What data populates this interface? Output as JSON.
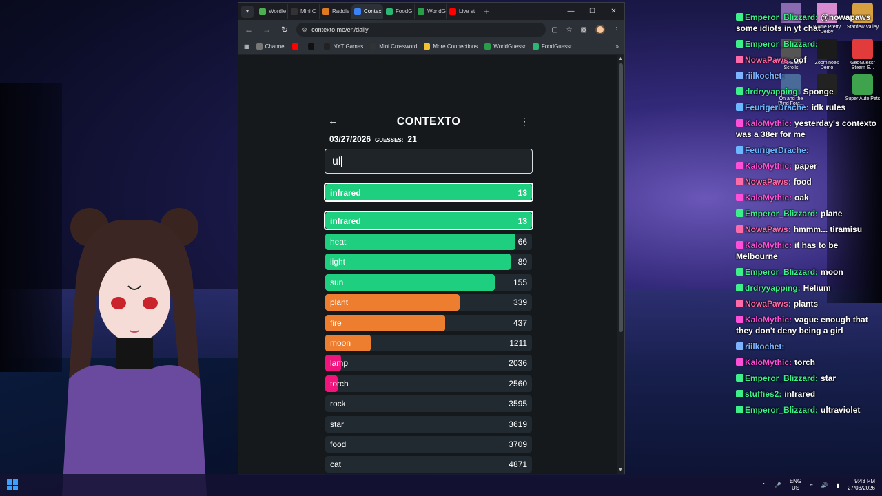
{
  "browser": {
    "tabs": [
      {
        "label": "Wordle",
        "color": "#4caf50"
      },
      {
        "label": "Mini C",
        "color": "#333333"
      },
      {
        "label": "Raddle",
        "color": "#e07a20"
      },
      {
        "label": "Contexto",
        "color": "#3b82f6",
        "active": true
      },
      {
        "label": "FoodG",
        "color": "#2bb673"
      },
      {
        "label": "WorldG",
        "color": "#2a9d4a"
      },
      {
        "label": "Live st",
        "color": "#ff0000"
      }
    ],
    "url": "contexto.me/en/daily",
    "bookmarks": [
      {
        "label": "Channel",
        "color": "#777777"
      },
      {
        "label": "",
        "color": "#ff0000"
      },
      {
        "label": "",
        "color": "#111111"
      },
      {
        "label": "NYT Games",
        "color": "#222222"
      },
      {
        "label": "Mini Crossword",
        "color": "#333333"
      },
      {
        "label": "More Connections",
        "color": "#f2c230"
      },
      {
        "label": "WorldGuessr",
        "color": "#2a9d4a"
      },
      {
        "label": "FoodGuessr",
        "color": "#2bb673"
      }
    ]
  },
  "contexto": {
    "title": "CONTEXTO",
    "date": "03/27/2026",
    "guesses_label": "GUESSES:",
    "guesses_count": "21",
    "input_value": "ul",
    "last_guess": {
      "word": "infrared",
      "rank": "13",
      "fill": 1.0,
      "color": "#1ecf7f"
    },
    "guesses": [
      {
        "word": "infrared",
        "rank": "13",
        "fill": 1.0,
        "color": "#1ecf7f"
      },
      {
        "word": "heat",
        "rank": "66",
        "fill": 0.92,
        "color": "#1ecf7f"
      },
      {
        "word": "light",
        "rank": "89",
        "fill": 0.895,
        "color": "#1ecf7f"
      },
      {
        "word": "sun",
        "rank": "155",
        "fill": 0.82,
        "color": "#1ecf7f"
      },
      {
        "word": "plant",
        "rank": "339",
        "fill": 0.65,
        "color": "#ed7d2f"
      },
      {
        "word": "fire",
        "rank": "437",
        "fill": 0.58,
        "color": "#ed7d2f"
      },
      {
        "word": "moon",
        "rank": "1211",
        "fill": 0.22,
        "color": "#ed7d2f"
      },
      {
        "word": "lamp",
        "rank": "2036",
        "fill": 0.075,
        "color": "#f0147c"
      },
      {
        "word": "torch",
        "rank": "2560",
        "fill": 0.06,
        "color": "#f0147c"
      },
      {
        "word": "rock",
        "rank": "3595",
        "fill": 0.0,
        "color": "#f0147c"
      },
      {
        "word": "star",
        "rank": "3619",
        "fill": 0.0,
        "color": "#f0147c"
      },
      {
        "word": "food",
        "rank": "3709",
        "fill": 0.0,
        "color": "#f0147c"
      },
      {
        "word": "cat",
        "rank": "4871",
        "fill": 0.0,
        "color": "#f0147c"
      }
    ]
  },
  "chat": [
    {
      "user": "Emperor_Blizzard:",
      "color": "#3ef08a",
      "text": "@nowapaws some idiots in yt chat"
    },
    {
      "user": "Emperor_Blizzard:",
      "color": "#3ef08a",
      "text": ""
    },
    {
      "user": "NowaPaws:",
      "color": "#ff6aa9",
      "text": "oof"
    },
    {
      "user": "riilkochet:",
      "color": "#7db3ff",
      "text": ""
    },
    {
      "user": "drdryyapping:",
      "color": "#3ef08a",
      "text": "Sponge"
    },
    {
      "user": "FeurigerDrache:",
      "color": "#6ab8ff",
      "text": "idk rules"
    },
    {
      "user": "KaloMythic:",
      "color": "#ff4fd8",
      "text": "yesterday's contexto was a 38er for me"
    },
    {
      "user": "FeurigerDrache:",
      "color": "#6ab8ff",
      "text": ""
    },
    {
      "user": "KaloMythic:",
      "color": "#ff4fd8",
      "text": "paper"
    },
    {
      "user": "NowaPaws:",
      "color": "#ff6aa9",
      "text": "food"
    },
    {
      "user": "KaloMythic:",
      "color": "#ff4fd8",
      "text": "oak"
    },
    {
      "user": "Emperor_Blizzard:",
      "color": "#3ef08a",
      "text": "plane"
    },
    {
      "user": "NowaPaws:",
      "color": "#ff6aa9",
      "text": "hmmm... tiramisu"
    },
    {
      "user": "KaloMythic:",
      "color": "#ff4fd8",
      "text": "it has to be Melbourne"
    },
    {
      "user": "Emperor_Blizzard:",
      "color": "#3ef08a",
      "text": "moon"
    },
    {
      "user": "drdryyapping:",
      "color": "#3ef08a",
      "text": "Helium"
    },
    {
      "user": "NowaPaws:",
      "color": "#ff6aa9",
      "text": "plants"
    },
    {
      "user": "KaloMythic:",
      "color": "#ff4fd8",
      "text": "vague enough that they don't deny being a girl"
    },
    {
      "user": "riilkochet:",
      "color": "#7db3ff",
      "text": ""
    },
    {
      "user": "KaloMythic:",
      "color": "#ff4fd8",
      "text": "torch"
    },
    {
      "user": "Emperor_Blizzard:",
      "color": "#3ef08a",
      "text": "star"
    },
    {
      "user": "stuffies2:",
      "color": "#3ef08a",
      "text": "infrared"
    },
    {
      "user": "Emperor_Blizzard:",
      "color": "#3ef08a",
      "text": "ultraviolet"
    }
  ],
  "desktop_icons": [
    {
      "label": "",
      "color": "#8a6ab0"
    },
    {
      "label": "Blame Pretty Derby",
      "color": "#d88bd0"
    },
    {
      "label": "Stardew Valley",
      "color": "#d6a040"
    },
    {
      "label": "The Elder Scrolls",
      "color": "#555555"
    },
    {
      "label": "Zoominoes Demo",
      "color": "#1b1b1b"
    },
    {
      "label": "GeoGuessr Steam E...",
      "color": "#e23b3b"
    },
    {
      "label": "On and the Blind Fore...",
      "color": "#4a6a9a"
    },
    {
      "label": "",
      "color": "#222222"
    },
    {
      "label": "Super Auto Pets",
      "color": "#3fa34d"
    }
  ],
  "taskbar": {
    "lang_top": "ENG",
    "lang_bottom": "US",
    "time": "9:43 PM",
    "date": "27/03/2026"
  }
}
